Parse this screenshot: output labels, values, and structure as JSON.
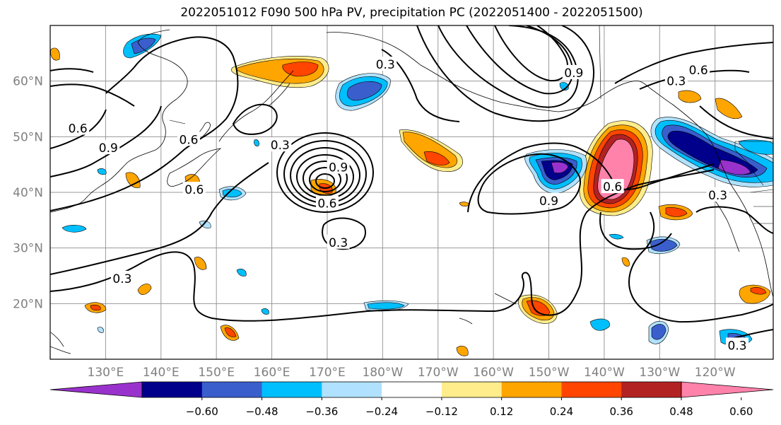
{
  "title": "2022051012 F090 500 hPa PV, precipitation PC (2022051400 - 2022051500)",
  "map": {
    "lat_ticks": [
      {
        "lat": 60,
        "label": "60°N"
      },
      {
        "lat": 50,
        "label": "50°N"
      },
      {
        "lat": 40,
        "label": "40°N"
      },
      {
        "lat": 30,
        "label": "30°N"
      },
      {
        "lat": 20,
        "label": "20°N"
      }
    ],
    "lon_ticks": [
      {
        "lon": 130,
        "label": "130°E"
      },
      {
        "lon": 140,
        "label": "140°E"
      },
      {
        "lon": 150,
        "label": "150°E"
      },
      {
        "lon": 160,
        "label": "160°E"
      },
      {
        "lon": 170,
        "label": "170°E"
      },
      {
        "lon": 180,
        "label": "180°W"
      },
      {
        "lon": 190,
        "label": "170°W"
      },
      {
        "lon": 200,
        "label": "160°W"
      },
      {
        "lon": 210,
        "label": "150°W"
      },
      {
        "lon": 220,
        "label": "140°W"
      },
      {
        "lon": 230,
        "label": "130°W"
      },
      {
        "lon": 240,
        "label": "120°W"
      }
    ],
    "contour_labels": [
      {
        "text": "0.3",
        "lon": 172,
        "lat": 31
      },
      {
        "text": "0.3",
        "lon": 133,
        "lat": 24.5
      },
      {
        "text": "0.6",
        "lon": 170,
        "lat": 38
      },
      {
        "text": "0.9",
        "lon": 172,
        "lat": 44.5
      },
      {
        "text": "0.9",
        "lon": 210,
        "lat": 38.5
      },
      {
        "text": "0.6",
        "lon": 221.5,
        "lat": 41
      },
      {
        "text": "0.6",
        "lon": 237,
        "lat": 62
      },
      {
        "text": "0.3",
        "lon": 233,
        "lat": 60
      },
      {
        "text": "0.9",
        "lon": 214.5,
        "lat": 61.5
      },
      {
        "text": "0.3",
        "lon": 240.5,
        "lat": 39.5
      },
      {
        "text": "0.6",
        "lon": 125,
        "lat": 51.5
      },
      {
        "text": "0.9",
        "lon": 130.5,
        "lat": 48
      },
      {
        "text": "0.6",
        "lon": 145,
        "lat": 49.5
      },
      {
        "text": "0.6",
        "lon": 146,
        "lat": 40.5
      },
      {
        "text": "0.3",
        "lon": 161.5,
        "lat": 48.5
      },
      {
        "text": "0.3",
        "lon": 180.5,
        "lat": 63
      },
      {
        "text": "0.3",
        "lon": 244,
        "lat": 12.5
      }
    ],
    "shading_colors": {
      "-0.60": "#9932CC",
      "-0.48": "#00008B",
      "-0.36": "#3A5FCD",
      "-0.24": "#00BFFF",
      "-0.12": "#B0E2FF",
      "0.12": "#FFEC8B",
      "0.24": "#FFA500",
      "0.36": "#FF4500",
      "0.48": "#B22222",
      "0.60": "#FF82AB"
    }
  },
  "colorbar": {
    "colors": [
      "#9932CC",
      "#00008B",
      "#3A5FCD",
      "#00BFFF",
      "#B0E2FF",
      "#FFFFFF",
      "#FFEC8B",
      "#FFA500",
      "#FF4500",
      "#B22222",
      "#FF82AB"
    ],
    "tick_labels": [
      "−0.60",
      "−0.48",
      "−0.36",
      "−0.24",
      "−0.12",
      "0.12",
      "0.24",
      "0.36",
      "0.48",
      "0.60"
    ]
  }
}
